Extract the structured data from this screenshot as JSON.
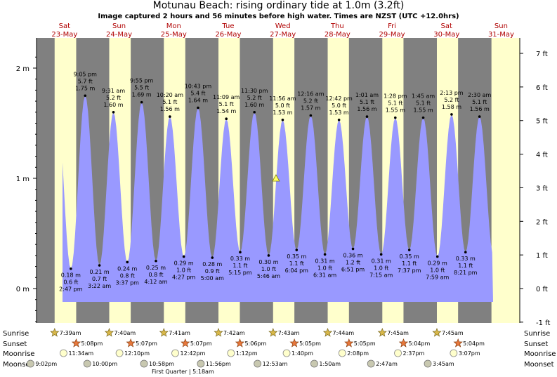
{
  "title": "Motunau Beach: rising  ordinary tide at 1.0m (3.2ft)",
  "subtitle": "Image captured 2 hours and 56 minutes before high water. Times are NZST (UTC +12.0hrs)",
  "colors": {
    "night": "#808080",
    "day": "#ffffcc",
    "water": "#9999ff",
    "daylabel": "#b00000"
  },
  "days": [
    {
      "dow": "Sat",
      "date": "23-May"
    },
    {
      "dow": "Sun",
      "date": "24-May"
    },
    {
      "dow": "Mon",
      "date": "25-May"
    },
    {
      "dow": "Tue",
      "date": "26-May"
    },
    {
      "dow": "Wed",
      "date": "27-May"
    },
    {
      "dow": "Thu",
      "date": "28-May"
    },
    {
      "dow": "Fri",
      "date": "29-May"
    },
    {
      "dow": "Sat",
      "date": "30-May"
    },
    {
      "dow": "Sun",
      "date": "31-May"
    }
  ],
  "chart_data": {
    "type": "area",
    "title": "Motunau Beach: rising  ordinary tide at 1.0m (3.2ft)",
    "y_left_ticks": [
      "0 m",
      "1 m",
      "2 m"
    ],
    "y_right_ticks": [
      "-1 ft",
      "0 ft",
      "1 ft",
      "2 ft",
      "3 ft",
      "4 ft",
      "5 ft",
      "6 ft",
      "7 ft"
    ],
    "ylim_m": [
      -0.45,
      2.25
    ],
    "tides": [
      {
        "type": "low",
        "day": 0,
        "time": "2:47 pm",
        "h": "0.18",
        "m": "0.18 m",
        "ft": "0.6 ft"
      },
      {
        "type": "high",
        "day": 0,
        "time": "9:05 pm",
        "h": "1.75",
        "m": "1.75 m",
        "ft": "5.7 ft"
      },
      {
        "type": "low",
        "day": 1,
        "time": "3:22 am",
        "h": "0.21",
        "m": "0.21 m",
        "ft": "0.7 ft"
      },
      {
        "type": "high",
        "day": 1,
        "time": "9:31 am",
        "h": "1.60",
        "m": "1.60 m",
        "ft": "5.2 ft"
      },
      {
        "type": "low",
        "day": 1,
        "time": "3:37 pm",
        "h": "0.24",
        "m": "0.24 m",
        "ft": "0.8 ft"
      },
      {
        "type": "high",
        "day": 1,
        "time": "9:55 pm",
        "h": "1.69",
        "m": "1.69 m",
        "ft": "5.5 ft"
      },
      {
        "type": "low",
        "day": 2,
        "time": "4:12 am",
        "h": "0.25",
        "m": "0.25 m",
        "ft": "0.8 ft"
      },
      {
        "type": "high",
        "day": 2,
        "time": "10:20 am",
        "h": "1.56",
        "m": "1.56 m",
        "ft": "5.1 ft"
      },
      {
        "type": "low",
        "day": 2,
        "time": "4:27 pm",
        "h": "0.29",
        "m": "0.29 m",
        "ft": "1.0 ft"
      },
      {
        "type": "high",
        "day": 2,
        "time": "10:43 pm",
        "h": "1.64",
        "m": "1.64 m",
        "ft": "5.4 ft"
      },
      {
        "type": "low",
        "day": 3,
        "time": "5:00 am",
        "h": "0.28",
        "m": "0.28 m",
        "ft": "0.9 ft"
      },
      {
        "type": "high",
        "day": 3,
        "time": "11:09 am",
        "h": "1.54",
        "m": "1.54 m",
        "ft": "5.1 ft"
      },
      {
        "type": "low",
        "day": 3,
        "time": "5:15 pm",
        "h": "0.33",
        "m": "0.33 m",
        "ft": "1.1 ft"
      },
      {
        "type": "high",
        "day": 3,
        "time": "11:30 pm",
        "h": "1.60",
        "m": "1.60 m",
        "ft": "5.2 ft"
      },
      {
        "type": "low",
        "day": 4,
        "time": "5:46 am",
        "h": "0.30",
        "m": "0.30 m",
        "ft": "1.0 ft"
      },
      {
        "type": "high",
        "day": 4,
        "time": "11:56 am",
        "h": "1.53",
        "m": "1.53 m",
        "ft": "5.0 ft"
      },
      {
        "type": "low",
        "day": 4,
        "time": "6:04 pm",
        "h": "0.35",
        "m": "0.35 m",
        "ft": "1.1 ft"
      },
      {
        "type": "high",
        "day": 5,
        "time": "12:16 am",
        "h": "1.57",
        "m": "1.57 m",
        "ft": "5.2 ft"
      },
      {
        "type": "low",
        "day": 5,
        "time": "6:31 am",
        "h": "0.31",
        "m": "0.31 m",
        "ft": "1.0 ft"
      },
      {
        "type": "high",
        "day": 5,
        "time": "12:42 pm",
        "h": "1.53",
        "m": "1.53 m",
        "ft": "5.0 ft"
      },
      {
        "type": "low",
        "day": 5,
        "time": "6:51 pm",
        "h": "0.36",
        "m": "0.36 m",
        "ft": "1.2 ft"
      },
      {
        "type": "high",
        "day": 6,
        "time": "1:01 am",
        "h": "1.56",
        "m": "1.56 m",
        "ft": "5.1 ft"
      },
      {
        "type": "low",
        "day": 6,
        "time": "7:15 am",
        "h": "0.31",
        "m": "0.31 m",
        "ft": "1.0 ft"
      },
      {
        "type": "high",
        "day": 6,
        "time": "1:28 pm",
        "h": "1.55",
        "m": "1.55 m",
        "ft": "5.1 ft"
      },
      {
        "type": "low",
        "day": 6,
        "time": "7:37 pm",
        "h": "0.35",
        "m": "0.35 m",
        "ft": "1.1 ft"
      },
      {
        "type": "high",
        "day": 7,
        "time": "1:45 am",
        "h": "1.55",
        "m": "1.55 m",
        "ft": "5.1 ft"
      },
      {
        "type": "low",
        "day": 7,
        "time": "7:59 am",
        "h": "0.29",
        "m": "0.29 m",
        "ft": "1.0 ft"
      },
      {
        "type": "high",
        "day": 7,
        "time": "2:13 pm",
        "h": "1.58",
        "m": "1.58 m",
        "ft": "5.2 ft"
      },
      {
        "type": "low",
        "day": 7,
        "time": "8:21 pm",
        "h": "0.33",
        "m": "0.33 m",
        "ft": "1.1 ft"
      },
      {
        "type": "high",
        "day": 8,
        "time": "2:30 am",
        "h": "1.56",
        "m": "1.56 m",
        "ft": "5.1 ft"
      }
    ],
    "current": {
      "day": 4,
      "time": "9:00 am",
      "h": "1.0"
    }
  },
  "rows": {
    "sunrise_label": "Sunrise",
    "sunset_label": "Sunset",
    "moonrise_label": "Moonrise",
    "moonset_label": "Moonset",
    "sunrise": [
      {
        "day": 0,
        "time": "7:39am"
      },
      {
        "day": 1,
        "time": "7:40am"
      },
      {
        "day": 2,
        "time": "7:41am"
      },
      {
        "day": 3,
        "time": "7:42am"
      },
      {
        "day": 4,
        "time": "7:43am"
      },
      {
        "day": 5,
        "time": "7:44am"
      },
      {
        "day": 6,
        "time": "7:45am"
      },
      {
        "day": 7,
        "time": "7:45am"
      }
    ],
    "sunset": [
      {
        "day": 0,
        "time": "5:08pm"
      },
      {
        "day": 1,
        "time": "5:07pm"
      },
      {
        "day": 2,
        "time": "5:07pm"
      },
      {
        "day": 3,
        "time": "5:06pm"
      },
      {
        "day": 4,
        "time": "5:05pm"
      },
      {
        "day": 5,
        "time": "5:05pm"
      },
      {
        "day": 6,
        "time": "5:04pm"
      },
      {
        "day": 7,
        "time": "5:04pm"
      }
    ],
    "moonrise": [
      {
        "day": 0,
        "time": "11:34am"
      },
      {
        "day": 1,
        "time": "12:10pm"
      },
      {
        "day": 2,
        "time": "12:42pm"
      },
      {
        "day": 3,
        "time": "1:12pm"
      },
      {
        "day": 4,
        "time": "1:40pm"
      },
      {
        "day": 5,
        "time": "2:08pm"
      },
      {
        "day": 6,
        "time": "2:37pm"
      },
      {
        "day": 7,
        "time": "3:07pm"
      }
    ],
    "moonset": [
      {
        "day": -1,
        "time": "9:02pm"
      },
      {
        "day": 0,
        "time": "10:00pm"
      },
      {
        "day": 1,
        "time": "10:58pm"
      },
      {
        "day": 2,
        "time": "11:56pm"
      },
      {
        "day": 4,
        "time": "12:53am"
      },
      {
        "day": 5,
        "time": "1:50am"
      },
      {
        "day": 6,
        "time": "2:47am"
      },
      {
        "day": 7,
        "time": "3:45am"
      }
    ],
    "moon_phase": {
      "day": 2,
      "label": "First Quarter | 5:18am"
    }
  }
}
